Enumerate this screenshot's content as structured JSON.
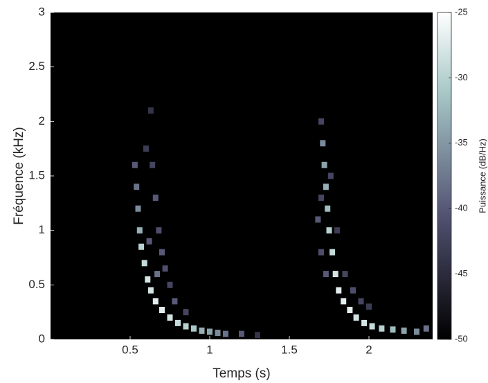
{
  "chart_data": {
    "type": "spectrogram",
    "x_label": "Temps (s)",
    "y_label": "Fréquence (kHz)",
    "colorbar_label": "Puissance (dB/Hz)",
    "xlim": [
      0,
      2.4
    ],
    "xticks": [
      0.5,
      1,
      1.5,
      2
    ],
    "ylim": [
      0,
      3
    ],
    "yticks": [
      0,
      0.5,
      1,
      1.5,
      2,
      2.5,
      3
    ],
    "clim": [
      -50,
      -25
    ],
    "cticks": [
      -25,
      -30,
      -35,
      -40,
      -45,
      -50
    ],
    "colormap": "bone",
    "x": [
      0.53,
      0.54,
      0.55,
      0.56,
      0.57,
      0.59,
      0.61,
      0.63,
      0.66,
      0.7,
      0.75,
      0.8,
      0.85,
      0.9,
      0.95,
      1.0,
      1.05,
      1.1,
      1.2,
      1.3,
      0.63,
      0.64,
      0.66,
      0.68,
      0.7,
      0.72,
      0.75,
      0.62,
      0.67,
      0.78,
      0.85,
      0.6,
      1.7,
      1.71,
      1.72,
      1.73,
      1.74,
      1.75,
      1.77,
      1.79,
      1.81,
      1.84,
      1.88,
      1.92,
      1.97,
      2.02,
      2.08,
      2.15,
      2.22,
      2.3,
      2.36,
      1.68,
      1.7,
      1.73,
      1.76,
      1.8,
      1.85,
      1.9,
      1.95,
      2.0,
      1.7
    ],
    "y": [
      1.6,
      1.4,
      1.2,
      1.0,
      0.85,
      0.7,
      0.55,
      0.45,
      0.35,
      0.27,
      0.2,
      0.15,
      0.12,
      0.1,
      0.08,
      0.07,
      0.06,
      0.05,
      0.05,
      0.04,
      2.1,
      1.6,
      1.3,
      1.0,
      0.8,
      0.65,
      0.5,
      0.9,
      0.6,
      0.35,
      0.25,
      1.75,
      2.0,
      1.8,
      1.6,
      1.4,
      1.2,
      1.0,
      0.8,
      0.6,
      0.45,
      0.35,
      0.27,
      0.2,
      0.15,
      0.12,
      0.1,
      0.09,
      0.08,
      0.07,
      0.1,
      1.1,
      0.8,
      0.6,
      1.5,
      1.0,
      0.6,
      0.45,
      0.35,
      0.3,
      1.3
    ],
    "values": [
      -40,
      -38,
      -36,
      -33,
      -30,
      -29,
      -28,
      -28,
      -27,
      -27,
      -28,
      -29,
      -30,
      -31,
      -33,
      -34,
      -36,
      -38,
      -40,
      -44,
      -44,
      -42,
      -40,
      -41,
      -40,
      -41,
      -42,
      -40,
      -38,
      -40,
      -42,
      -43,
      -42,
      -36,
      -34,
      -33,
      -32,
      -30,
      -29,
      -28,
      -27,
      -27,
      -27,
      -28,
      -28,
      -29,
      -30,
      -32,
      -34,
      -36,
      -38,
      -40,
      -41,
      -40,
      -42,
      -43,
      -42,
      -41,
      -42,
      -43,
      -42
    ]
  }
}
